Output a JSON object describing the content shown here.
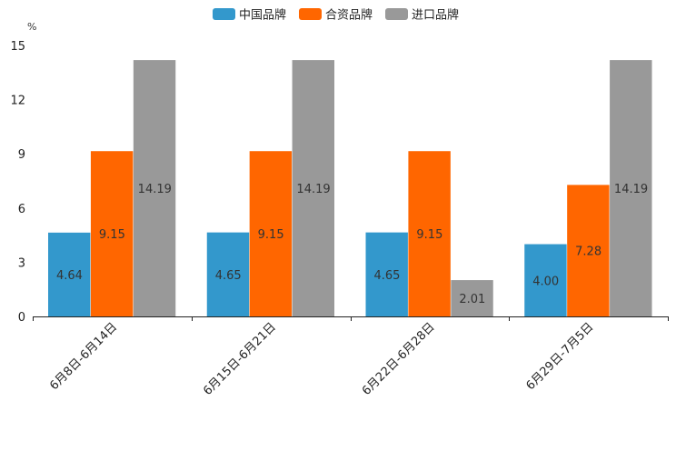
{
  "chart_data": {
    "type": "bar",
    "title": "",
    "xlabel": "",
    "ylabel": "%",
    "ylim": [
      0,
      15
    ],
    "yticks": [
      0,
      3,
      6,
      9,
      12,
      15
    ],
    "grid": false,
    "legend_position": "top-center",
    "categories": [
      "6月8日-6月14日",
      "6月15日-6月21日",
      "6月22日-6月28日",
      "6月29日-7月5日"
    ],
    "series": [
      {
        "name": "中国品牌",
        "color": "#3398cc",
        "values": [
          4.64,
          4.65,
          4.65,
          4.0
        ],
        "labels": [
          "4.64",
          "4.65",
          "4.65",
          "4.00"
        ]
      },
      {
        "name": "合资品牌",
        "color": "#ff6600",
        "values": [
          9.15,
          9.15,
          9.15,
          7.28
        ],
        "labels": [
          "9.15",
          "9.15",
          "9.15",
          "7.28"
        ]
      },
      {
        "name": "进口品牌",
        "color": "#999999",
        "values": [
          14.19,
          14.19,
          2.01,
          14.19
        ],
        "labels": [
          "14.19",
          "14.19",
          "2.01",
          "14.19"
        ]
      }
    ]
  }
}
